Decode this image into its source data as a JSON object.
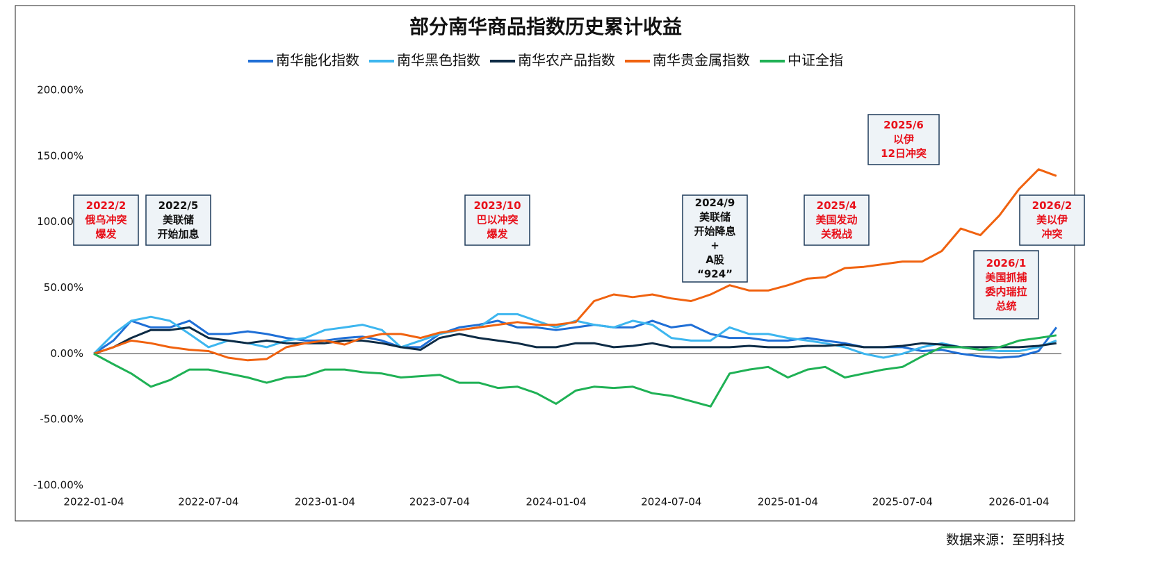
{
  "chart_data": {
    "type": "line",
    "title": "部分南华商品指数历史累计收益",
    "source": "数据来源：至明科技",
    "x": [
      "2022-01-04",
      "2022-02-04",
      "2022-03-04",
      "2022-04-04",
      "2022-05-04",
      "2022-06-04",
      "2022-07-04",
      "2022-08-04",
      "2022-09-04",
      "2022-10-04",
      "2022-11-04",
      "2022-12-04",
      "2023-01-04",
      "2023-02-04",
      "2023-03-04",
      "2023-04-04",
      "2023-05-04",
      "2023-06-04",
      "2023-07-04",
      "2023-08-04",
      "2023-09-04",
      "2023-10-04",
      "2023-11-04",
      "2023-12-04",
      "2024-01-04",
      "2024-02-04",
      "2024-03-04",
      "2024-04-04",
      "2024-05-04",
      "2024-06-04",
      "2024-07-04",
      "2024-08-04",
      "2024-09-04",
      "2024-10-04",
      "2024-11-04",
      "2024-12-04",
      "2025-01-04",
      "2025-02-04",
      "2025-03-04",
      "2025-04-04",
      "2025-05-04",
      "2025-06-04",
      "2025-07-04",
      "2025-08-04",
      "2025-09-04",
      "2025-10-04",
      "2025-11-04",
      "2025-12-04",
      "2026-01-04",
      "2026-02-04",
      "2026-03-04"
    ],
    "series": [
      {
        "name": "南华能化指数",
        "color": "#1f6fd6",
        "values": [
          0,
          10,
          25,
          20,
          20,
          25,
          15,
          15,
          17,
          15,
          12,
          10,
          10,
          12,
          13,
          10,
          5,
          5,
          15,
          20,
          22,
          25,
          20,
          20,
          18,
          20,
          22,
          20,
          20,
          25,
          20,
          22,
          15,
          12,
          12,
          10,
          10,
          12,
          10,
          8,
          5,
          5,
          5,
          2,
          3,
          0,
          -2,
          -3,
          -2,
          2,
          20
        ]
      },
      {
        "name": "南华黑色指数",
        "color": "#3db6ef",
        "values": [
          0,
          15,
          25,
          28,
          25,
          15,
          5,
          10,
          8,
          5,
          10,
          12,
          18,
          20,
          22,
          18,
          5,
          10,
          15,
          18,
          20,
          30,
          30,
          25,
          20,
          25,
          22,
          20,
          25,
          22,
          12,
          10,
          10,
          20,
          15,
          15,
          12,
          10,
          8,
          5,
          0,
          -3,
          0,
          5,
          8,
          5,
          3,
          2,
          2,
          5,
          10
        ]
      },
      {
        "name": "南华农产品指数",
        "color": "#0d2b45",
        "values": [
          0,
          5,
          12,
          18,
          18,
          20,
          12,
          10,
          8,
          10,
          8,
          8,
          8,
          10,
          10,
          8,
          5,
          3,
          12,
          15,
          12,
          10,
          8,
          5,
          5,
          8,
          8,
          5,
          6,
          8,
          5,
          5,
          5,
          5,
          6,
          5,
          5,
          6,
          6,
          7,
          5,
          5,
          6,
          8,
          7,
          5,
          5,
          5,
          5,
          6,
          8
        ]
      },
      {
        "name": "南华贵金属指数",
        "color": "#f0620f",
        "values": [
          0,
          5,
          10,
          8,
          5,
          3,
          2,
          -3,
          -5,
          -4,
          5,
          8,
          10,
          7,
          12,
          15,
          15,
          12,
          16,
          18,
          20,
          22,
          24,
          22,
          22,
          24,
          40,
          45,
          43,
          45,
          42,
          40,
          45,
          52,
          48,
          48,
          52,
          57,
          58,
          65,
          66,
          68,
          70,
          70,
          78,
          95,
          90,
          105,
          125,
          140,
          135
        ]
      },
      {
        "name": "中证全指",
        "color": "#1fb155",
        "values": [
          0,
          -8,
          -15,
          -25,
          -20,
          -12,
          -12,
          -15,
          -18,
          -22,
          -18,
          -17,
          -12,
          -12,
          -14,
          -15,
          -18,
          -17,
          -16,
          -22,
          -22,
          -26,
          -25,
          -30,
          -38,
          -28,
          -25,
          -26,
          -25,
          -30,
          -32,
          -36,
          -40,
          -15,
          -12,
          -10,
          -18,
          -12,
          -10,
          -18,
          -15,
          -12,
          -10,
          -2,
          5,
          5,
          3,
          5,
          10,
          12,
          14
        ]
      }
    ],
    "xlim": [
      "2022-01-04",
      "2026-03-15"
    ],
    "xticks": [
      "2022-01-04",
      "2022-07-04",
      "2023-01-04",
      "2023-07-04",
      "2024-01-04",
      "2024-07-04",
      "2025-01-04",
      "2025-07-04",
      "2026-01-04"
    ],
    "ylim": [
      -100,
      200
    ],
    "yticks": [
      {
        "value": 200,
        "label": "200.00%"
      },
      {
        "value": 150,
        "label": "150.00%"
      },
      {
        "value": 100,
        "label": "100.00%"
      },
      {
        "value": 50,
        "label": "50.00%"
      },
      {
        "value": 0,
        "label": "0.00%"
      },
      {
        "value": -50,
        "label": "-50.00%"
      },
      {
        "value": -100,
        "label": "-100.00%"
      }
    ],
    "annotations": [
      {
        "lines": [
          "2022/2",
          "俄乌冲突",
          "爆发"
        ],
        "color": "#e8101a"
      },
      {
        "lines": [
          "2022/5",
          "美联储",
          "开始加息"
        ],
        "color": "#111111"
      },
      {
        "lines": [
          "2023/10",
          "巴以冲突",
          "爆发"
        ],
        "color": "#e8101a"
      },
      {
        "lines": [
          "2024/9",
          "美联储",
          "开始降息",
          "+",
          "A股",
          "“924”"
        ],
        "color": "#111111"
      },
      {
        "lines": [
          "2025/4",
          "美国发动",
          "关税战"
        ],
        "color": "#e8101a"
      },
      {
        "lines": [
          "2025/6",
          "以伊",
          "12日冲突"
        ],
        "color": "#e8101a"
      },
      {
        "lines": [
          "2026/1",
          "美国抓捕",
          "委内瑞拉",
          "总统"
        ],
        "color": "#e8101a"
      },
      {
        "lines": [
          "2026/2",
          "美以伊",
          "冲突"
        ],
        "color": "#e8101a"
      }
    ]
  }
}
